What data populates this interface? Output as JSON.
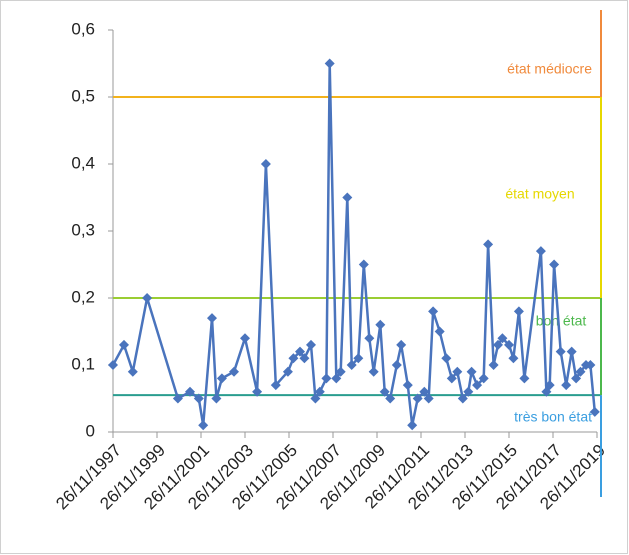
{
  "chart_data": {
    "type": "line",
    "x": [
      1997.9,
      1998.4,
      1998.8,
      1999.45,
      2000.85,
      2001.4,
      2001.8,
      2002.0,
      2002.4,
      2002.6,
      2002.85,
      2003.4,
      2003.9,
      2004.45,
      2004.85,
      2005.3,
      2005.85,
      2006.1,
      2006.4,
      2006.6,
      2006.9,
      2007.1,
      2007.3,
      2007.6,
      2007.75,
      2008.05,
      2008.25,
      2008.55,
      2008.75,
      2009.05,
      2009.3,
      2009.55,
      2009.75,
      2010.05,
      2010.25,
      2010.5,
      2010.8,
      2011.0,
      2011.3,
      2011.5,
      2011.75,
      2012.05,
      2012.25,
      2012.45,
      2012.75,
      2013.05,
      2013.3,
      2013.55,
      2013.8,
      2014.05,
      2014.2,
      2014.45,
      2014.75,
      2014.95,
      2015.2,
      2015.4,
      2015.6,
      2015.9,
      2016.1,
      2016.35,
      2016.6,
      2017.35,
      2017.6,
      2017.75,
      2017.95,
      2018.25,
      2018.5,
      2018.75,
      2018.95,
      2019.15,
      2019.4,
      2019.6,
      2019.8
    ],
    "series": [
      {
        "color": "#4a74bd",
        "values": [
          0.1,
          0.13,
          0.09,
          0.2,
          0.05,
          0.06,
          0.05,
          0.01,
          0.17,
          0.05,
          0.08,
          0.09,
          0.14,
          0.06,
          0.4,
          0.07,
          0.09,
          0.11,
          0.12,
          0.11,
          0.13,
          0.05,
          0.06,
          0.08,
          0.55,
          0.08,
          0.09,
          0.35,
          0.1,
          0.11,
          0.25,
          0.14,
          0.09,
          0.16,
          0.06,
          0.05,
          0.1,
          0.13,
          0.07,
          0.01,
          0.05,
          0.06,
          0.05,
          0.18,
          0.15,
          0.11,
          0.08,
          0.09,
          0.05,
          0.06,
          0.09,
          0.07,
          0.08,
          0.28,
          0.1,
          0.13,
          0.14,
          0.13,
          0.11,
          0.18,
          0.08,
          0.27,
          0.06,
          0.07,
          0.25,
          0.12,
          0.07,
          0.12,
          0.08,
          0.09,
          0.1,
          0.1,
          0.03
        ]
      }
    ],
    "xlim": [
      1997.9,
      2019.9
    ],
    "xticks": [
      {
        "value": 1997.9,
        "label": "26/11/1997"
      },
      {
        "value": 1999.9,
        "label": "26/11/1999"
      },
      {
        "value": 2001.9,
        "label": "26/11/2001"
      },
      {
        "value": 2003.9,
        "label": "26/11/2003"
      },
      {
        "value": 2005.9,
        "label": "26/11/2005"
      },
      {
        "value": 2007.9,
        "label": "26/11/2007"
      },
      {
        "value": 2009.9,
        "label": "26/11/2009"
      },
      {
        "value": 2011.9,
        "label": "26/11/2011"
      },
      {
        "value": 2013.9,
        "label": "26/11/2013"
      },
      {
        "value": 2015.9,
        "label": "26/11/2015"
      },
      {
        "value": 2017.9,
        "label": "26/11/2017"
      },
      {
        "value": 2019.9,
        "label": "26/11/2019"
      }
    ],
    "ylim": [
      0,
      0.6
    ],
    "yticks": [
      0,
      {
        "value": 0.1,
        "label": "0,1"
      },
      {
        "value": 0.2,
        "label": "0,2"
      },
      {
        "value": 0.3,
        "label": "0,3"
      },
      {
        "value": 0.4,
        "label": "0,4"
      },
      {
        "value": 0.5,
        "label": "0,5"
      },
      {
        "value": 0.6,
        "label": "0,6"
      }
    ],
    "grid": false,
    "thresholds": [
      {
        "value": 0.5,
        "color": "#f2b21c"
      },
      {
        "value": 0.2,
        "color": "#9acd32"
      },
      {
        "value": 0.055,
        "color": "#2a9d8f"
      }
    ],
    "zones": [
      {
        "label": "état médiocre",
        "color": "#f08a3c"
      },
      {
        "label": "état moyen",
        "color": "#e6d800"
      },
      {
        "label": "bon état",
        "color": "#4cb84c"
      },
      {
        "label": "très bon état",
        "color": "#3a9ee0"
      }
    ]
  }
}
